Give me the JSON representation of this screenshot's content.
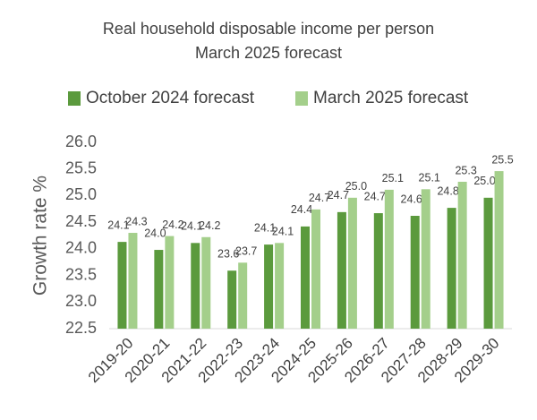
{
  "chart_data": {
    "type": "bar",
    "title": "Real household disposable income per person",
    "subtitle": "March 2025 forecast",
    "y_label": "Growth rate %",
    "categories": [
      "2019-20",
      "2020-21",
      "2021-22",
      "2022-23",
      "2023-24",
      "2024-25",
      "2025-26",
      "2026-27",
      "2027-28",
      "2028-29",
      "2029-30"
    ],
    "series": [
      {
        "name": "October 2024 forecast",
        "color": "#5b9a3d",
        "values": [
          24.13,
          23.98,
          24.11,
          23.59,
          24.08,
          24.42,
          24.69,
          24.67,
          24.62,
          24.77,
          24.96
        ],
        "value_labels": [
          "24.1",
          "24.0",
          "24.1",
          "23.6",
          "24.1",
          "24.4",
          "24.7",
          "24.7",
          "24.6",
          "24.8",
          "25.0"
        ]
      },
      {
        "name": "March 2025 forecast",
        "color": "#a4cf8b",
        "values": [
          24.3,
          24.24,
          24.22,
          23.74,
          24.11,
          24.74,
          24.96,
          25.11,
          25.12,
          25.26,
          25.46
        ],
        "value_labels": [
          "24.3",
          "24.2",
          "24.2",
          "23.7",
          "24.1",
          "24.7",
          "25.0",
          "25.1",
          "25.1",
          "25.3",
          "25.5"
        ]
      }
    ],
    "ylim": [
      22.5,
      26.0
    ],
    "yticks": [
      22.5,
      {
        "value": 23,
        "label": "23.0"
      },
      23.5,
      {
        "value": 24,
        "label": "24.0"
      },
      24.5,
      {
        "value": 25,
        "label": "25.0"
      },
      25.5,
      {
        "value": 26,
        "label": "26.0"
      }
    ],
    "grid": false,
    "legend": "top"
  }
}
